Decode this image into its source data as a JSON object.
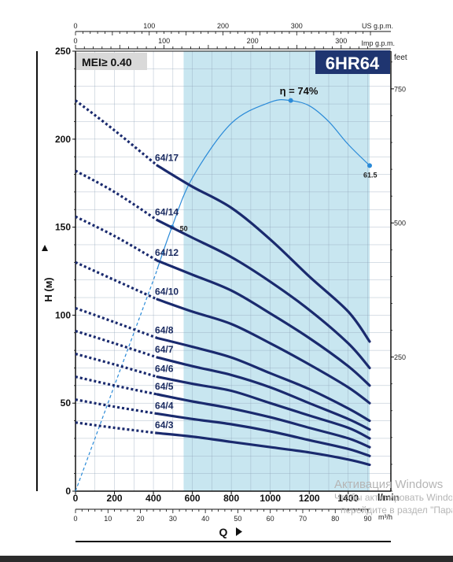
{
  "chart_data": {
    "type": "line",
    "title": "6HR64",
    "badge": "MEI≥ 0.40",
    "efficiency_label": "η = 74%",
    "colors": {
      "curve": "#1a2a6e",
      "efficiency": "#2a8ad8",
      "shaded_region": "#c8e6f0",
      "title_bg": "#1f3570",
      "badge_bg": "#d9d9d9"
    },
    "xlabel": "Q",
    "xunit": "l/min",
    "ylabel": "H (м)",
    "x_axis_lpm": {
      "range": [
        0,
        1500
      ],
      "ticks": [
        "0",
        "200",
        "400",
        "600",
        "800",
        "1000",
        "1200",
        "1400"
      ]
    },
    "x_axis_m3h": {
      "unit": "m³/h",
      "range": [
        0,
        92
      ],
      "ticks": [
        "0",
        "10",
        "20",
        "30",
        "40",
        "50",
        "60",
        "70",
        "80",
        "90"
      ]
    },
    "x_axis_usgpm": {
      "unit": "US g.p.m.",
      "range": [
        0,
        400
      ],
      "ticks": [
        "0",
        "100",
        "200",
        "300"
      ]
    },
    "x_axis_impgpm": {
      "unit": "Imp g.p.m.",
      "range": [
        0,
        330
      ],
      "ticks": [
        "0",
        "100",
        "200",
        "300"
      ]
    },
    "y_axis_m": {
      "range": [
        0,
        250
      ],
      "ticks": [
        "0",
        "50",
        "100",
        "150",
        "200",
        "250"
      ]
    },
    "y_axis_feet": {
      "unit": "feet",
      "range": [
        0,
        820
      ],
      "ticks": [
        "250",
        "500",
        "750"
      ]
    },
    "shaded_range_lpm": [
      555,
      1510
    ],
    "operating_range_lpm": [
      420,
      1510
    ],
    "series": [
      {
        "name": "64/17",
        "x": [
          0,
          200,
          420,
          600,
          800,
          1000,
          1200,
          1400,
          1510
        ],
        "y": [
          222,
          205,
          185,
          173,
          161,
          143,
          122,
          102,
          85
        ]
      },
      {
        "name": "64/14",
        "x": [
          0,
          200,
          420,
          600,
          800,
          1000,
          1200,
          1400,
          1510
        ],
        "y": [
          182,
          170,
          154,
          144,
          133,
          119,
          103,
          84,
          70
        ]
      },
      {
        "name": "64/12",
        "x": [
          0,
          200,
          420,
          600,
          800,
          1000,
          1200,
          1400,
          1510
        ],
        "y": [
          156,
          145,
          131,
          123,
          114,
          101,
          87,
          71,
          60
        ]
      },
      {
        "name": "64/10",
        "x": [
          0,
          200,
          420,
          600,
          800,
          1000,
          1200,
          1400,
          1510
        ],
        "y": [
          130,
          120,
          109,
          102,
          95,
          84,
          72,
          59,
          50
        ]
      },
      {
        "name": "64/8",
        "x": [
          0,
          200,
          420,
          600,
          800,
          1000,
          1200,
          1400,
          1510
        ],
        "y": [
          104,
          96,
          87,
          82,
          76,
          67,
          58,
          47,
          40
        ]
      },
      {
        "name": "64/7",
        "x": [
          0,
          200,
          420,
          600,
          800,
          1000,
          1200,
          1400,
          1510
        ],
        "y": [
          91,
          84,
          76,
          71,
          66,
          59,
          50,
          41,
          35
        ]
      },
      {
        "name": "64/6",
        "x": [
          0,
          200,
          420,
          600,
          800,
          1000,
          1200,
          1400,
          1510
        ],
        "y": [
          78,
          72,
          65,
          61,
          57,
          50,
          43,
          36,
          30
        ]
      },
      {
        "name": "64/5",
        "x": [
          0,
          200,
          420,
          600,
          800,
          1000,
          1200,
          1400,
          1510
        ],
        "y": [
          65,
          60,
          55,
          51,
          47,
          42,
          36,
          30,
          25
        ]
      },
      {
        "name": "64/4",
        "x": [
          0,
          200,
          420,
          600,
          800,
          1000,
          1200,
          1400,
          1510
        ],
        "y": [
          52,
          48,
          44,
          41,
          38,
          34,
          29,
          24,
          20
        ]
      },
      {
        "name": "64/3",
        "x": [
          0,
          200,
          420,
          600,
          800,
          1000,
          1200,
          1400,
          1510
        ],
        "y": [
          39,
          36,
          33,
          31,
          28,
          25,
          22,
          18,
          15
        ]
      }
    ],
    "efficiency_curve": {
      "x": [
        0,
        200,
        400,
        495,
        600,
        800,
        1000,
        1100,
        1200,
        1300,
        1400,
        1510
      ],
      "y": [
        0,
        60,
        120,
        150,
        178,
        209,
        221,
        222,
        219,
        210,
        197,
        185
      ],
      "labeled_points": [
        {
          "x": 495,
          "y": 150,
          "label": "50"
        },
        {
          "x": 1105,
          "y": 222,
          "label": ""
        },
        {
          "x": 1510,
          "y": 185,
          "label": "61.5"
        }
      ]
    }
  },
  "watermark": {
    "line1": "Активация Windows",
    "line2": "Чтобы активировать Windows,",
    "line3": "перейдите в раздел \"Параметры\"."
  }
}
